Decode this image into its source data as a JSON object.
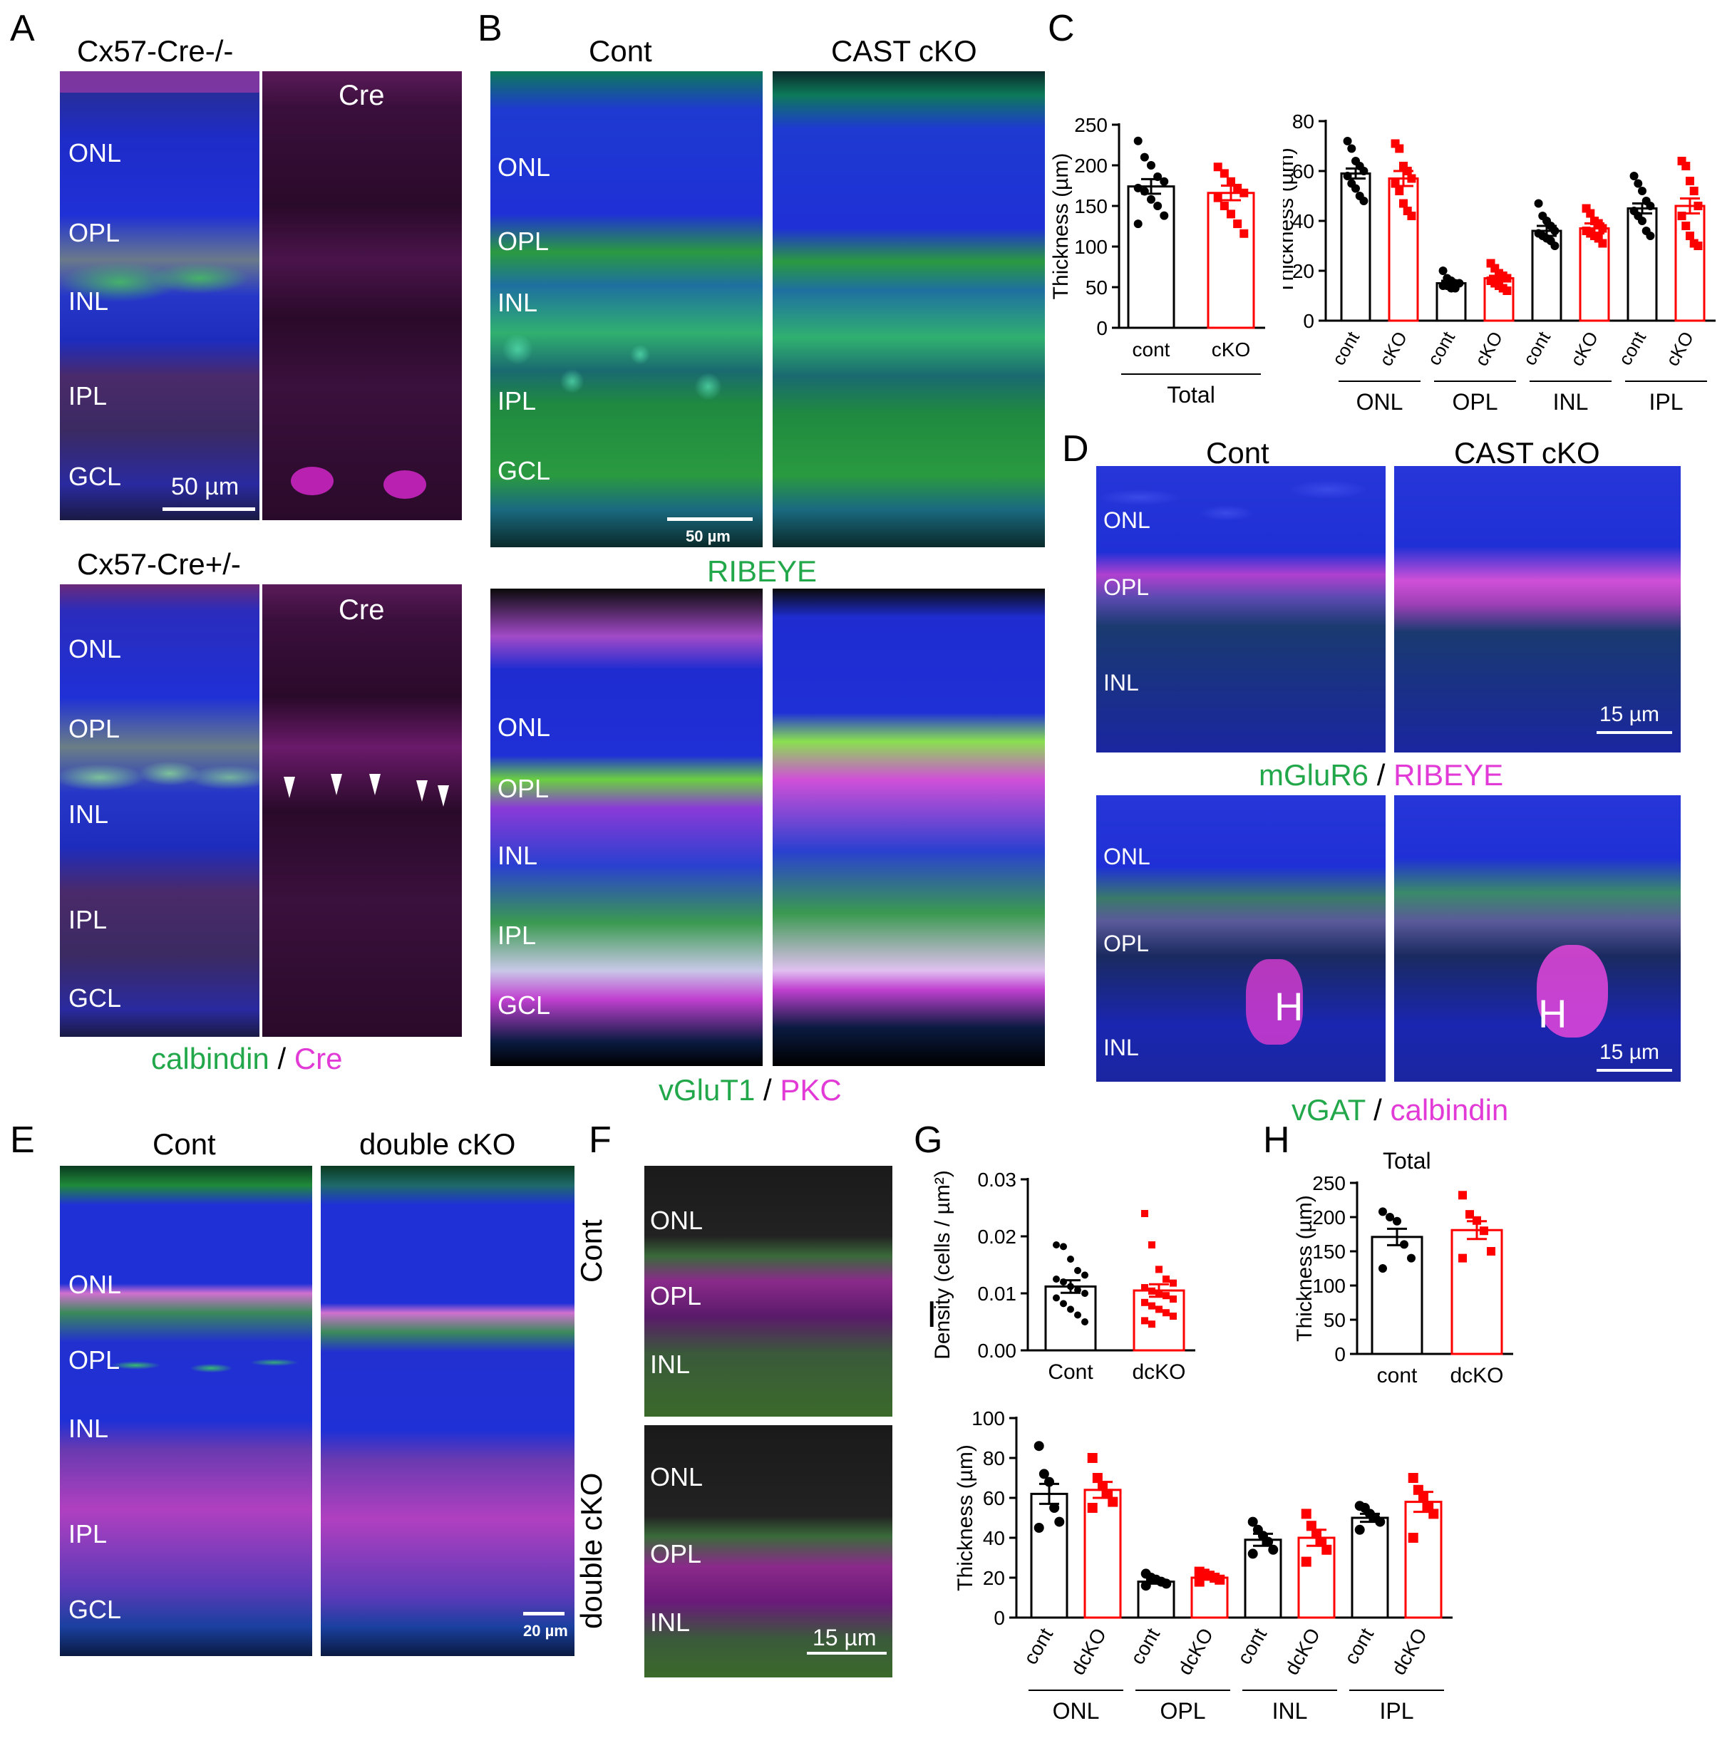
{
  "colors": {
    "green": "#22a84a",
    "magenta": "#e23ad6",
    "blue_nuclei": "#1d2fd6",
    "control_series": "#000000",
    "ko_series": "#ff0000"
  },
  "panel_A": {
    "letter": "A",
    "top_title": "Cx57-Cre-/-",
    "bottom_title": "Cx57-Cre+/-",
    "cre_label": "Cre",
    "layers_top": [
      "ONL",
      "OPL",
      "INL",
      "IPL",
      "GCL"
    ],
    "layers_bottom": [
      "ONL",
      "OPL",
      "INL",
      "IPL",
      "GCL"
    ],
    "scale": "50 µm",
    "caption_green": "calbindin",
    "caption_sep": " / ",
    "caption_magenta": "Cre"
  },
  "panel_B": {
    "letter": "B",
    "title_left": "Cont",
    "title_right": "CAST cKO",
    "layers_top": [
      "ONL",
      "OPL",
      "INL",
      "IPL",
      "GCL"
    ],
    "layers_bottom": [
      "ONL",
      "OPL",
      "INL",
      "IPL",
      "GCL"
    ],
    "scale": "50 µm",
    "caption_top": "RIBEYE",
    "caption_green": "vGluT1",
    "caption_sep": " / ",
    "caption_magenta": "PKC"
  },
  "panel_D": {
    "letter": "D",
    "title_left": "Cont",
    "title_right": "CAST cKO",
    "layers_top": [
      "ONL",
      "OPL",
      "INL"
    ],
    "layers_bottom": [
      "ONL",
      "OPL",
      "INL"
    ],
    "scale": "15 µm",
    "h_label": "H",
    "caption1_green": "mGluR6",
    "caption1_sep": " / ",
    "caption1_magenta": "RIBEYE",
    "caption2_green": "vGAT",
    "caption2_sep": " / ",
    "caption2_magenta": "calbindin"
  },
  "panel_E": {
    "letter": "E",
    "title_left": "Cont",
    "title_right": "double cKO",
    "layers": [
      "ONL",
      "OPL",
      "INL",
      "IPL",
      "GCL"
    ],
    "scale": "20 µm"
  },
  "panel_F": {
    "letter": "F",
    "side_top": "Cont",
    "side_bottom": "double cKO",
    "layers_top": [
      "ONL",
      "OPL",
      "INL"
    ],
    "layers_bottom": [
      "ONL",
      "OPL",
      "INL"
    ],
    "scale": "15 µm"
  },
  "chart_data": [
    {
      "id": "C-total",
      "panel": "C",
      "type": "bar",
      "ylabel": "Thickness (µm)",
      "ylim": [
        0,
        250
      ],
      "yticks": [
        0,
        50,
        100,
        150,
        200,
        250
      ],
      "categories": [
        "cont",
        "cKO"
      ],
      "group_label": "Total",
      "values": [
        174,
        166
      ],
      "errors": [
        9,
        9
      ],
      "points": [
        [
          230,
          210,
          200,
          186,
          180,
          172,
          168,
          158,
          150,
          138,
          128
        ],
        [
          198,
          190,
          180,
          172,
          166,
          160,
          150,
          140,
          128,
          116
        ]
      ]
    },
    {
      "id": "C-layers",
      "panel": "C",
      "type": "bar",
      "ylabel": "Thickness (µm)",
      "ylim": [
        0,
        80
      ],
      "yticks": [
        0,
        20,
        40,
        60,
        80
      ],
      "categories": [
        "cont",
        "cKO",
        "cont",
        "cKO",
        "cont",
        "cKO",
        "cont",
        "cKO"
      ],
      "groups": [
        "ONL",
        "OPL",
        "INL",
        "IPL"
      ],
      "values": [
        59,
        57,
        15,
        17,
        36,
        37,
        45,
        46
      ],
      "errors": [
        2,
        3,
        1,
        1,
        2,
        2,
        2,
        3
      ],
      "points": [
        [
          72,
          69,
          64,
          62,
          60,
          58,
          55,
          53,
          50,
          48
        ],
        [
          71,
          69,
          62,
          60,
          57,
          55,
          52,
          47,
          44,
          42
        ],
        [
          20,
          17,
          16,
          15,
          15,
          14,
          14,
          13,
          13
        ],
        [
          23,
          21,
          19,
          18,
          17,
          16,
          15,
          14,
          13,
          12
        ],
        [
          47,
          42,
          40,
          38,
          36,
          35,
          34,
          33,
          32,
          30
        ],
        [
          45,
          43,
          40,
          39,
          37,
          36,
          35,
          34,
          33,
          31
        ],
        [
          58,
          55,
          52,
          48,
          46,
          44,
          42,
          40,
          36,
          34
        ],
        [
          64,
          62,
          56,
          52,
          46,
          42,
          38,
          34,
          31,
          30
        ]
      ]
    },
    {
      "id": "G",
      "panel": "G",
      "type": "bar",
      "ylabel": "Density (cells / µm²)",
      "ylim": [
        0,
        0.03
      ],
      "yticks": [
        "0.00",
        "0.01",
        "0.02",
        "0.03"
      ],
      "categories": [
        "Cont",
        "dcKO"
      ],
      "values": [
        0.0112,
        0.0105
      ],
      "errors": [
        0.0011,
        0.0011
      ],
      "points": [
        [
          0.0185,
          0.0182,
          0.016,
          0.014,
          0.0132,
          0.0125,
          0.012,
          0.0112,
          0.0106,
          0.01,
          0.0092,
          0.0082,
          0.0072,
          0.0062,
          0.005
        ],
        [
          0.024,
          0.0185,
          0.0142,
          0.0125,
          0.0118,
          0.011,
          0.0104,
          0.01,
          0.0096,
          0.009,
          0.0084,
          0.0078,
          0.0072,
          0.0066,
          0.006,
          0.0052,
          0.0046
        ]
      ]
    },
    {
      "id": "H",
      "panel": "H",
      "type": "bar",
      "title": "Total",
      "ylabel": "Thickness (µm)",
      "ylim": [
        0,
        250
      ],
      "yticks": [
        0,
        50,
        100,
        150,
        200,
        250
      ],
      "categories": [
        "cont",
        "dcKO"
      ],
      "values": [
        171,
        181
      ],
      "errors": [
        12,
        13
      ],
      "points": [
        [
          208,
          200,
          194,
          160,
          140,
          125
        ],
        [
          232,
          204,
          195,
          180,
          150,
          140
        ]
      ]
    },
    {
      "id": "I",
      "panel": "I",
      "type": "bar",
      "ylabel": "Thickness (µm)",
      "ylim": [
        0,
        100
      ],
      "yticks": [
        0,
        20,
        40,
        60,
        80,
        100
      ],
      "categories": [
        "cont",
        "dcKO",
        "cont",
        "dcKO",
        "cont",
        "dcKO",
        "cont",
        "dcKO"
      ],
      "groups": [
        "ONL",
        "OPL",
        "INL",
        "IPL"
      ],
      "values": [
        62,
        64,
        18,
        20,
        39,
        40,
        50,
        58
      ],
      "errors": [
        5,
        4,
        1,
        1,
        3,
        4,
        2,
        5
      ],
      "points": [
        [
          86,
          72,
          68,
          55,
          48,
          45
        ],
        [
          80,
          70,
          66,
          62,
          58,
          55
        ],
        [
          22,
          20,
          19,
          18,
          17,
          16
        ],
        [
          23,
          22,
          21,
          20,
          19,
          18
        ],
        [
          48,
          44,
          41,
          38,
          34,
          32
        ],
        [
          52,
          46,
          42,
          38,
          34,
          28
        ],
        [
          56,
          55,
          52,
          50,
          48,
          44
        ],
        [
          70,
          64,
          60,
          56,
          52,
          40
        ]
      ]
    }
  ]
}
